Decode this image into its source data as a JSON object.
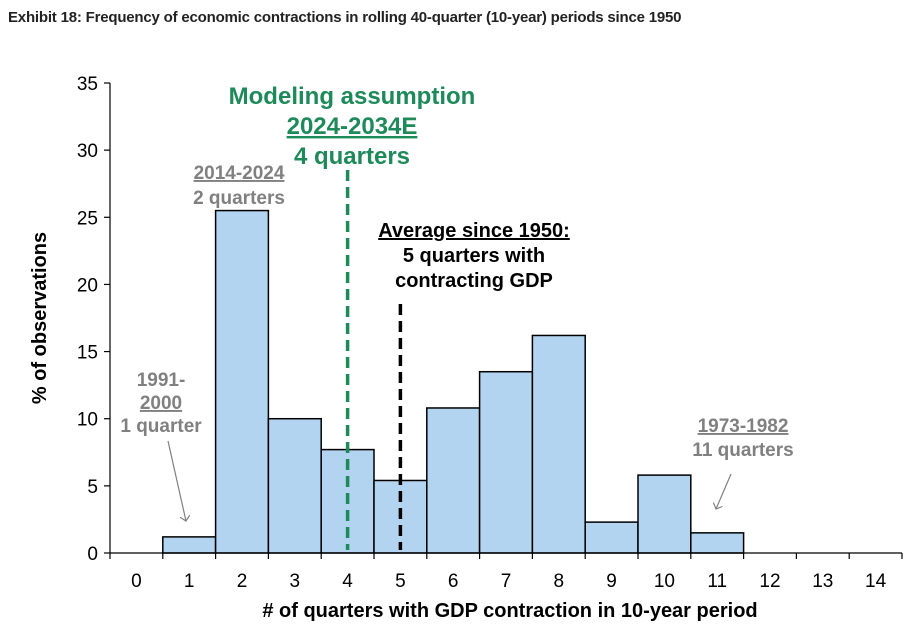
{
  "title": "Exhibit 18: Frequency of economic contractions in rolling 40-quarter (10-year) periods since 1950",
  "chart_data": {
    "type": "bar",
    "categories": [
      "0",
      "1",
      "2",
      "3",
      "4",
      "5",
      "6",
      "7",
      "8",
      "9",
      "10",
      "11",
      "12",
      "13",
      "14"
    ],
    "values": [
      0,
      1.2,
      25.5,
      10.0,
      7.7,
      5.4,
      10.8,
      13.5,
      16.2,
      2.3,
      5.8,
      1.5,
      0,
      0,
      0
    ],
    "xlabel": "# of quarters with GDP contraction in 10-year period",
    "ylabel": "% of observations",
    "ylim": [
      0,
      35
    ],
    "yticks": [
      "0",
      "5",
      "10",
      "15",
      "20",
      "25",
      "30",
      "35"
    ],
    "grid": false,
    "bar_color": "#b3d4f0",
    "bar_edge_color": "#000000",
    "reference_lines": [
      {
        "x": 4,
        "style": "dashed",
        "color": "#1e8a5a"
      },
      {
        "x": 5,
        "style": "dashed",
        "color": "#000000"
      }
    ],
    "annotations": {
      "a1991": {
        "line1": "1991-",
        "line2": "2000",
        "line3": "1 quarter",
        "color": "#808080"
      },
      "a2014": {
        "line1": "2014-2024",
        "line2": "2 quarters",
        "color": "#808080"
      },
      "modeling": {
        "line1": "Modeling assumption",
        "line2": "2024-2034E",
        "line3": "4 quarters",
        "color": "#1e8a5a"
      },
      "average": {
        "line1": "Average since 1950:",
        "line2": "5 quarters with",
        "line3": "contracting GDP",
        "color": "#000000"
      },
      "a1973": {
        "line1": "1973-1982",
        "line2": "11 quarters",
        "color": "#808080"
      }
    }
  }
}
